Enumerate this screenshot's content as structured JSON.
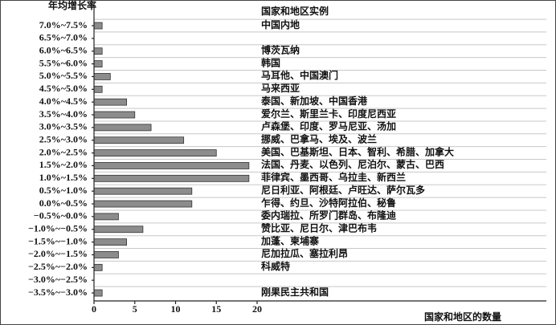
{
  "chart_data": {
    "type": "bar",
    "orientation": "horizontal",
    "y_axis_title": "年均增长率",
    "x_axis_title": "国家和地区的数量",
    "examples_title": "国家和地区实例",
    "categories": [
      "7.0%~7.5%",
      "6.5%~7.0%",
      "6.0%~6.5%",
      "5.5%~6.0%",
      "5.0%~5.5%",
      "4.5%~5.0%",
      "4.0%~4.5%",
      "3.5%~4.0%",
      "3.0%~3.5%",
      "2.5%~3.0%",
      "2.0%~2.5%",
      "1.5%~2.0%",
      "1.0%~1.5%",
      "0.5%~1.0%",
      "0.0%~0.5%",
      "−0.5%~0.0%",
      "−1.0%~−0.5%",
      "−1.5%~−1.0%",
      "−2.0%~−1.5%",
      "−2.5%~−2.0%",
      "−3.0%~−2.5%",
      "−3.5%~−3.0%"
    ],
    "values": [
      1,
      0,
      1,
      1,
      2,
      1,
      4,
      5,
      7,
      11,
      15,
      19,
      19,
      12,
      12,
      3,
      6,
      4,
      3,
      1,
      0,
      1
    ],
    "examples": [
      "中国内地",
      null,
      "博茨瓦纳",
      "韩国",
      "马耳他、中国澳门",
      "马来西亚",
      "泰国、新加坡、中国香港",
      "爱尔兰、斯里兰卡、印度尼西亚",
      "卢森堡、印度、罗马尼亚、汤加",
      "挪威、巴拿马、埃及、波兰",
      "美国、巴基斯坦、日本、智利、希腊、加拿大",
      "法国、丹麦、以色列、尼泊尔、蒙古、巴西",
      "菲律宾、墨西哥、乌拉圭、新西兰",
      "尼日利亚、阿根廷、卢旺达、萨尔瓦多",
      "乍得、约旦、沙特阿拉伯、秘鲁",
      "委内瑞拉、所罗门群岛、布隆迪",
      "赞比亚、尼日尔、津巴布韦",
      "加蓬、柬埔寨",
      "尼加拉瓜、塞拉利昂",
      "科威特",
      null,
      "刚果民主共和国"
    ],
    "color": "#8c8c8c",
    "xlim": [
      0,
      20
    ],
    "xticks": [
      0,
      5,
      10,
      15,
      20
    ]
  }
}
